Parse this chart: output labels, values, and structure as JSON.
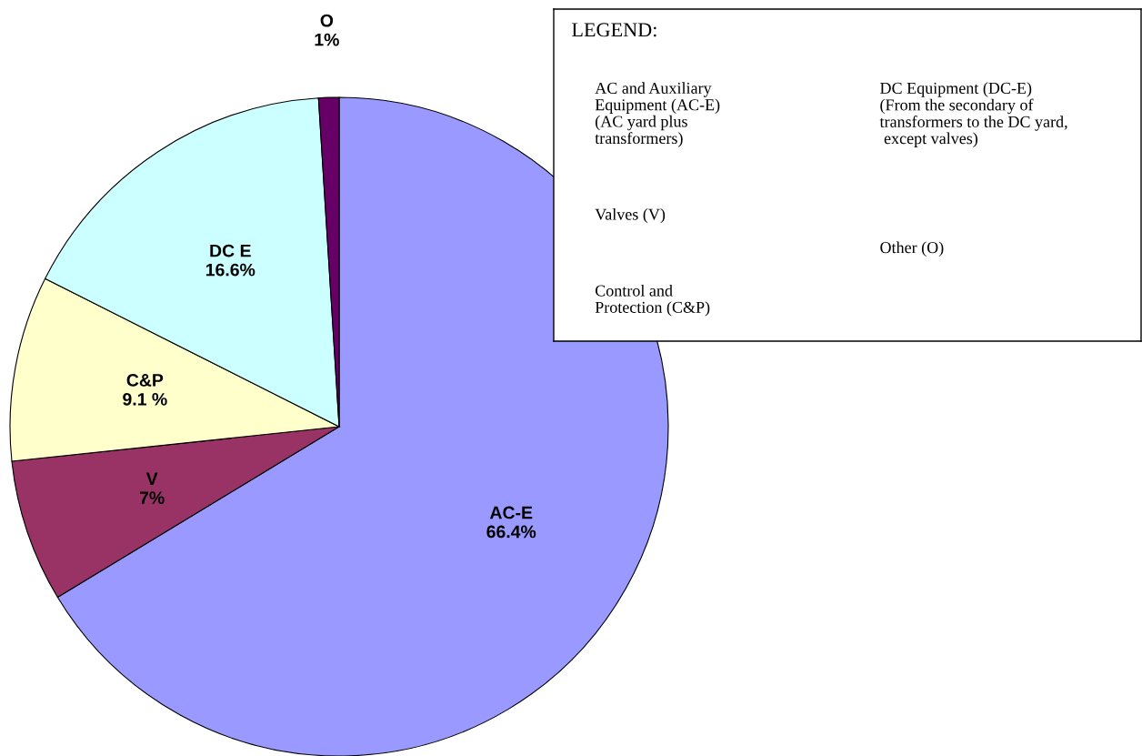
{
  "chart_data": {
    "type": "pie",
    "categories": [
      "AC-E",
      "V",
      "C&P",
      "DC E",
      "O"
    ],
    "values": [
      66.4,
      7,
      9.1,
      16.6,
      1
    ],
    "value_labels": [
      "66.4%",
      "7%",
      "9.1 %",
      "16.6%",
      "1%"
    ],
    "colors": [
      "#9999ff",
      "#993366",
      "#ffffcc",
      "#ccffff",
      "#660066"
    ],
    "legend_title": "LEGEND:",
    "annotations": [
      "AC and Auxiliary\nEquipment (AC-E)\n(AC yard plus\ntransformers)",
      "DC Equipment (DC-E)\n(From the secondary of\ntransformers to the DC yard,\n except valves)",
      "Valves (V)",
      "\n\nOther (O)",
      "Control and\nProtection (C&P)"
    ]
  }
}
